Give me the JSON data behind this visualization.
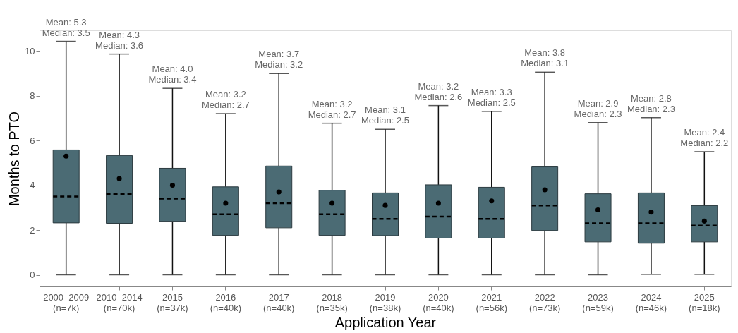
{
  "chart_data": {
    "type": "box",
    "categories": [
      "2000–2009\n(n=7k)",
      "2010–2014\n(n=70k)",
      "2015\n(n=37k)",
      "2016\n(n=40k)",
      "2017\n(n=40k)",
      "2018\n(n=35k)",
      "2019\n(n=38k)",
      "2020\n(n=40k)",
      "2021\n(n=56k)",
      "2022\n(n=73k)",
      "2023\n(n=59k)",
      "2024\n(n=46k)",
      "2025\n(n=18k)"
    ],
    "boxes": [
      {
        "low": 0,
        "q1": 2.32,
        "median": 3.5,
        "q3": 5.58,
        "high": 10.43,
        "mean": 5.3
      },
      {
        "low": 0,
        "q1": 2.3,
        "median": 3.6,
        "q3": 5.33,
        "high": 9.86,
        "mean": 4.3
      },
      {
        "low": 0,
        "q1": 2.39,
        "median": 3.4,
        "q3": 4.76,
        "high": 8.33,
        "mean": 4.0
      },
      {
        "low": 0,
        "q1": 1.76,
        "median": 2.7,
        "q3": 3.93,
        "high": 7.2,
        "mean": 3.2
      },
      {
        "low": 0,
        "q1": 2.1,
        "median": 3.2,
        "q3": 4.86,
        "high": 8.99,
        "mean": 3.7
      },
      {
        "low": 0,
        "q1": 1.76,
        "median": 2.7,
        "q3": 3.78,
        "high": 6.77,
        "mean": 3.2
      },
      {
        "low": 0,
        "q1": 1.75,
        "median": 2.5,
        "q3": 3.66,
        "high": 6.5,
        "mean": 3.1
      },
      {
        "low": 0,
        "q1": 1.64,
        "median": 2.6,
        "q3": 4.02,
        "high": 7.56,
        "mean": 3.2
      },
      {
        "low": 0,
        "q1": 1.64,
        "median": 2.5,
        "q3": 3.91,
        "high": 7.3,
        "mean": 3.3
      },
      {
        "low": 0,
        "q1": 1.98,
        "median": 3.1,
        "q3": 4.82,
        "high": 9.05,
        "mean": 3.8
      },
      {
        "low": 0,
        "q1": 1.47,
        "median": 2.3,
        "q3": 3.62,
        "high": 6.8,
        "mean": 2.9
      },
      {
        "low": 0.02,
        "q1": 1.41,
        "median": 2.3,
        "q3": 3.66,
        "high": 7.02,
        "mean": 2.8
      },
      {
        "low": 0.02,
        "q1": 1.47,
        "median": 2.2,
        "q3": 3.09,
        "high": 5.5,
        "mean": 2.4
      }
    ],
    "color": "#4b6b74",
    "xlabel": "Application Year",
    "ylabel": "Months to PTO",
    "ylim": [
      -0.52,
      10.92
    ],
    "yticks": [
      0,
      2,
      4,
      6,
      8,
      10
    ],
    "grid": false,
    "annotations": [
      {
        "text": "Mean: 5.3\nMedian: 3.5",
        "x": "2000–2009\n(n=7k)",
        "y": 10.43
      },
      {
        "text": "Mean: 4.3\nMedian: 3.6",
        "x": "2010–2014\n(n=70k)",
        "y": 9.86
      },
      {
        "text": "Mean: 4.0\nMedian: 3.4",
        "x": "2015\n(n=37k)",
        "y": 8.33
      },
      {
        "text": "Mean: 3.2\nMedian: 2.7",
        "x": "2016\n(n=40k)",
        "y": 7.2
      },
      {
        "text": "Mean: 3.7\nMedian: 3.2",
        "x": "2017\n(n=40k)",
        "y": 8.99
      },
      {
        "text": "Mean: 3.2\nMedian: 2.7",
        "x": "2018\n(n=35k)",
        "y": 6.77
      },
      {
        "text": "Mean: 3.1\nMedian: 2.5",
        "x": "2019\n(n=38k)",
        "y": 6.5
      },
      {
        "text": "Mean: 3.2\nMedian: 2.6",
        "x": "2020\n(n=40k)",
        "y": 7.56
      },
      {
        "text": "Mean: 3.3\nMedian: 2.5",
        "x": "2021\n(n=56k)",
        "y": 7.3
      },
      {
        "text": "Mean: 3.8\nMedian: 3.1",
        "x": "2022\n(n=73k)",
        "y": 9.05
      },
      {
        "text": "Mean: 2.9\nMedian: 2.3",
        "x": "2023\n(n=59k)",
        "y": 6.8
      },
      {
        "text": "Mean: 2.8\nMedian: 2.3",
        "x": "2024\n(n=46k)",
        "y": 7.02
      },
      {
        "text": "Mean: 2.4\nMedian: 2.2",
        "x": "2025\n(n=18k)",
        "y": 5.5
      }
    ]
  }
}
